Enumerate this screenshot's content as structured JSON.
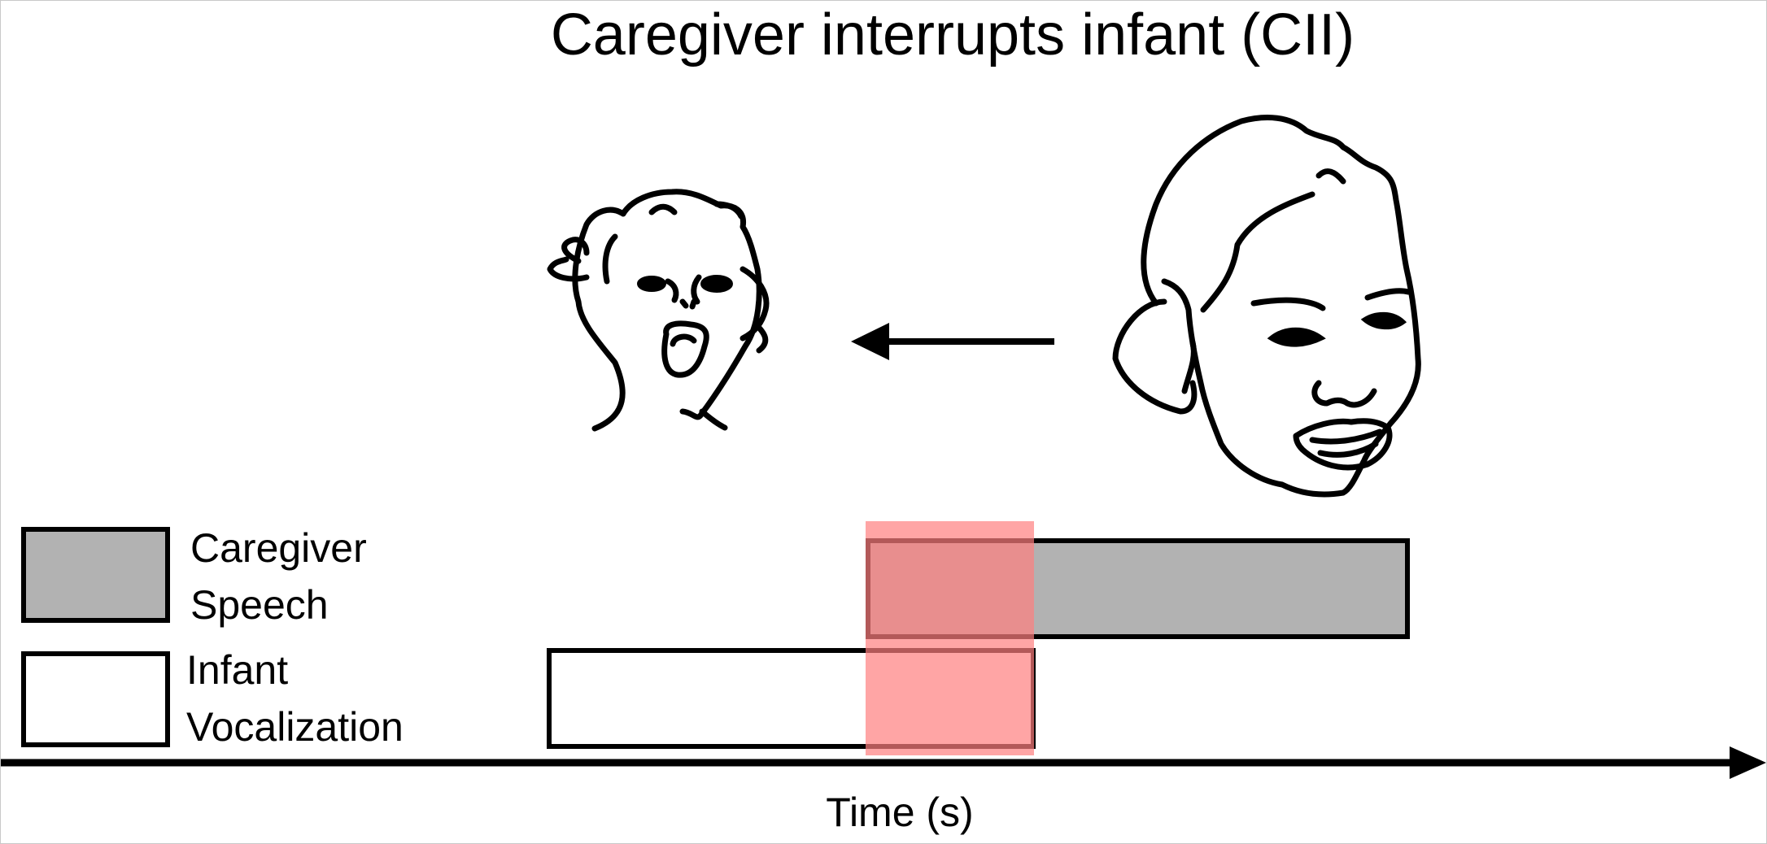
{
  "title": "Caregiver interrupts infant (CII)",
  "legend": {
    "caregiver": {
      "line1": "Caregiver",
      "line2": "Speech",
      "color": "#b2b2b2"
    },
    "infant": {
      "line1": "Infant",
      "line2": "Vocalization",
      "color": "#ffffff"
    }
  },
  "overlap_color": "#ff7f7f",
  "axis_label": "Time (s)",
  "icons": {
    "infant_face": "infant-face-icon",
    "caregiver_face": "caregiver-face-icon",
    "arrow": "left-arrow-icon"
  }
}
